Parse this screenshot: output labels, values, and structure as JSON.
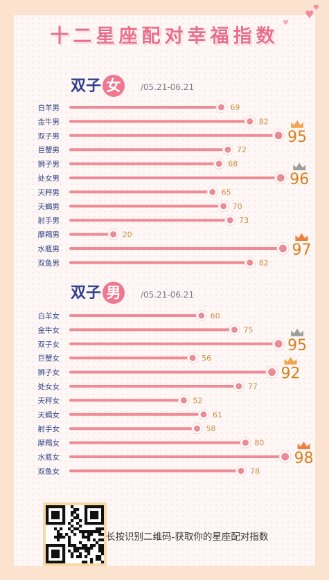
{
  "title": "十二星座配对幸福指数",
  "sections": [
    {
      "name_text": "双子",
      "name_circle": "女",
      "date": "/05.21-06.21",
      "labels": [
        "白羊男",
        "金牛男",
        "双子男",
        "巨蟹男",
        "狮子男",
        "处女男",
        "天秤男",
        "天蝎男",
        "射手男",
        "摩羯男",
        "水瓶男",
        "双鱼男"
      ],
      "values": [
        69,
        82,
        95,
        72,
        68,
        96,
        65,
        70,
        73,
        20,
        97,
        82
      ],
      "crown_colors": {
        "95": "#f2a451",
        "96": "#9e9e9e",
        "97": "#ef7f3d"
      }
    },
    {
      "name_text": "双子",
      "name_circle": "男",
      "date": "/05.21-06.21",
      "labels": [
        "白羊女",
        "金牛女",
        "双子女",
        "巨蟹女",
        "狮子女",
        "处女女",
        "天秤女",
        "天蝎女",
        "射手女",
        "摩羯女",
        "水瓶女",
        "双鱼女"
      ],
      "values": [
        60,
        75,
        95,
        56,
        92,
        77,
        52,
        61,
        58,
        80,
        98,
        78
      ],
      "crown_colors": {
        "95": "#9e9e9e",
        "92": "#f2a451",
        "98": "#ef7f3d"
      }
    }
  ],
  "chart_data": [
    {
      "type": "bar",
      "categories": [
        "白羊男",
        "金牛男",
        "双子男",
        "巨蟹男",
        "狮子男",
        "处女男",
        "天秤男",
        "天蝎男",
        "射手男",
        "摩羯男",
        "水瓶男",
        "双鱼男"
      ],
      "values": [
        69,
        82,
        95,
        72,
        68,
        96,
        65,
        70,
        73,
        20,
        97,
        82
      ],
      "orientation": "horizontal",
      "title": "双子女"
    },
    {
      "type": "bar",
      "categories": [
        "白羊女",
        "金牛女",
        "双子女",
        "巨蟹女",
        "狮子女",
        "处女女",
        "天秤女",
        "天蝎女",
        "射手女",
        "摩羯女",
        "水瓶女",
        "双鱼女"
      ],
      "values": [
        60,
        75,
        95,
        56,
        92,
        77,
        52,
        61,
        58,
        80,
        98,
        78
      ],
      "orientation": "horizontal",
      "title": "双子男"
    }
  ],
  "colors": {
    "bar": "#f08a94",
    "label": "#2f4487",
    "value": "#c7903f",
    "big_value": "#d5811c",
    "title": "#e86f8a"
  },
  "footer": "长按识别二维码-获取你的星座配对指数"
}
